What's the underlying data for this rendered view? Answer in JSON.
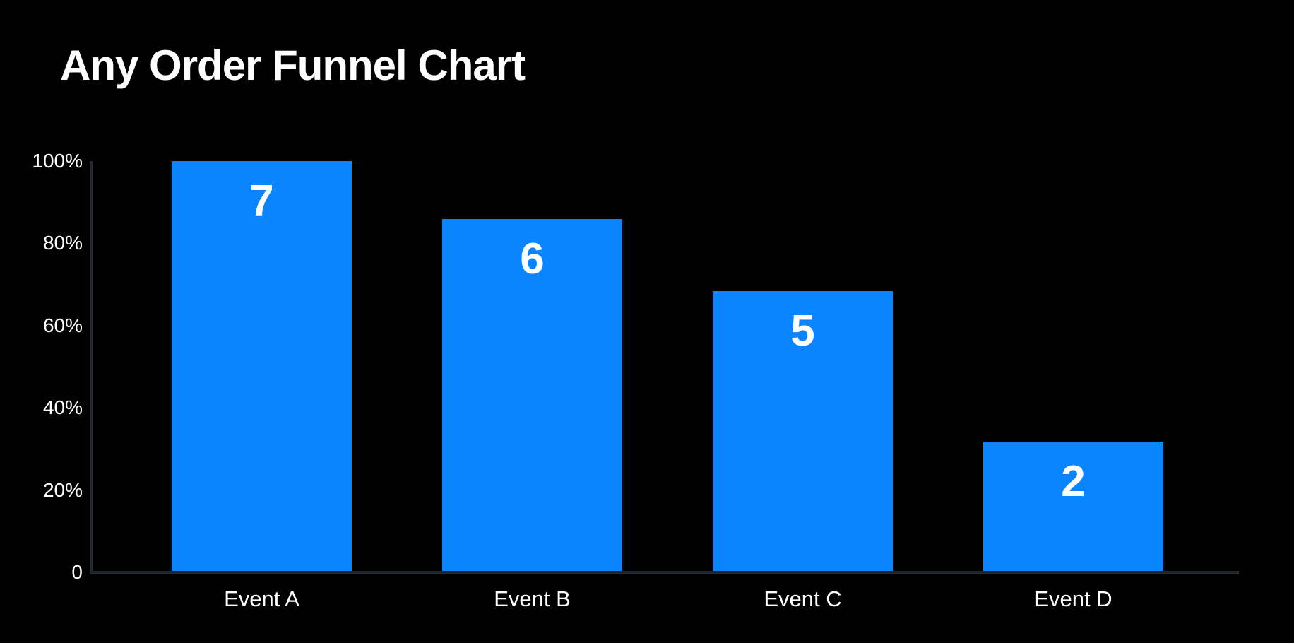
{
  "chart_data": {
    "type": "bar",
    "subtype": "funnel",
    "title": "Any Order Funnel Chart",
    "categories": [
      "Event A",
      "Event B",
      "Event C",
      "Event D"
    ],
    "values": [
      7,
      6,
      5,
      2
    ],
    "bar_heights_pct": [
      100,
      85.8,
      68.2,
      31.5
    ],
    "value_labels": [
      "7",
      "6",
      "5",
      "2"
    ],
    "y_ticks": [
      {
        "label": "100%",
        "pct": 100
      },
      {
        "label": "80%",
        "pct": 80
      },
      {
        "label": "60%",
        "pct": 60
      },
      {
        "label": "40%",
        "pct": 40
      },
      {
        "label": "20%",
        "pct": 20
      },
      {
        "label": "0",
        "pct": 0
      }
    ],
    "xlabel": "",
    "ylabel": "",
    "ylim": [
      0,
      100
    ],
    "grid": false,
    "legend": false,
    "colors": {
      "background": "#000000",
      "bar": "#0b84ff",
      "axis": "#232931",
      "text": "#ffffff"
    }
  }
}
